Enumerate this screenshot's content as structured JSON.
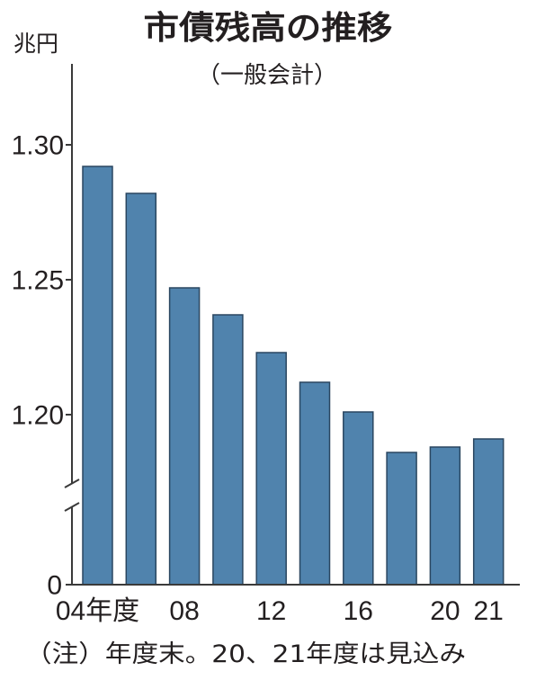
{
  "chart_data": {
    "type": "bar",
    "title": "市債残高の推移",
    "subtitle": "（一般会計）",
    "ylabel": "兆円",
    "categories": [
      "04年度",
      "",
      "08",
      "",
      "12",
      "",
      "16",
      "",
      "20",
      "21"
    ],
    "values": [
      1.292,
      1.282,
      1.247,
      1.237,
      1.223,
      1.212,
      1.201,
      1.186,
      1.188,
      1.191
    ],
    "yticks": [
      {
        "value": 1.3,
        "label": "1.30"
      },
      {
        "value": 1.25,
        "label": "1.25"
      },
      {
        "value": 1.2,
        "label": "1.20"
      },
      {
        "value": 0,
        "label": "0"
      }
    ],
    "ylim": [
      0,
      1.33
    ],
    "y_axis_break": [
      0,
      1.175
    ],
    "grid": false,
    "note": "（注）年度末。20、21年度は見込み",
    "colors": {
      "bar_fill": "#5083ad",
      "bar_edge": "#2a4660",
      "axis": "#3a3a3a",
      "text": "#231f20"
    }
  }
}
